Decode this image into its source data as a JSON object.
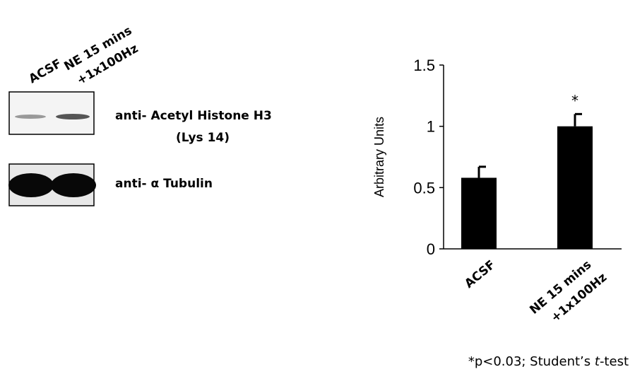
{
  "blot": {
    "lanes": [
      [
        "ACSF"
      ],
      [
        "NE 15 mins",
        "+1x100Hz"
      ]
    ],
    "bands": [
      {
        "label": [
          "anti- Acetyl Histone H3",
          "(Lys 14)"
        ]
      },
      {
        "label": [
          "anti- α Tubulin"
        ]
      }
    ]
  },
  "chart_data": {
    "type": "bar",
    "ylabel": "Arbitrary Units",
    "categories": [
      [
        "ACSF"
      ],
      [
        "NE 15 mins",
        "+1x100Hz"
      ]
    ],
    "values": [
      0.58,
      1.0
    ],
    "errors": [
      0.09,
      0.1
    ],
    "color": "#000000",
    "annotations": [
      null,
      "*"
    ],
    "ylim": [
      0,
      1.5
    ],
    "yticks": [
      0,
      0.5,
      1,
      1.5
    ]
  },
  "footnote": [
    "*p<0.03; Student’s ",
    "t",
    "-test"
  ]
}
